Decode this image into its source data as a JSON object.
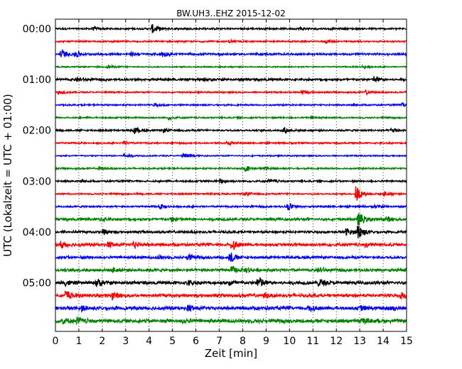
{
  "chart_data": {
    "type": "line",
    "title": "BW.UH3..EHZ 2015-12-02",
    "xlabel": "Zeit  [min]",
    "ylabel": "UTC (Lokalzeit = UTC + 01:00)",
    "xlim": [
      0,
      15
    ],
    "x_ticks": [
      0,
      1,
      2,
      3,
      4,
      5,
      6,
      7,
      8,
      9,
      10,
      11,
      12,
      13,
      14,
      15
    ],
    "x_tick_labels": [
      "0",
      "1",
      "2",
      "3",
      "4",
      "5",
      "6",
      "7",
      "8",
      "9",
      "10",
      "11",
      "12",
      "13",
      "14",
      "15"
    ],
    "y_tick_labels": [
      "00:00",
      "01:00",
      "02:00",
      "03:00",
      "04:00",
      "05:00"
    ],
    "y_tick_rows": [
      0,
      4,
      8,
      12,
      16,
      20
    ],
    "trace_interval_minutes": 15,
    "trace_count": 24,
    "grid": "vertical dotted",
    "trace_colors": [
      "#000000",
      "#ff0000",
      "#0000ff",
      "#008000"
    ],
    "series": [
      {
        "start": "00:00",
        "noise": 0.35,
        "events": [
          [
            4.2,
            1.6
          ],
          [
            1.7,
            0.5
          ],
          [
            10.5,
            0.6
          ]
        ]
      },
      {
        "start": "00:15",
        "noise": 0.3,
        "events": [
          [
            7.5,
            0.5
          ],
          [
            11.6,
            0.6
          ]
        ]
      },
      {
        "start": "00:30",
        "noise": 0.4,
        "events": [
          [
            0.3,
            1.6
          ],
          [
            0.9,
            1.2
          ],
          [
            4.6,
            1.0
          ],
          [
            3.3,
            0.5
          ]
        ]
      },
      {
        "start": "00:45",
        "noise": 0.25,
        "events": [
          [
            2.3,
            0.6
          ],
          [
            13.2,
            0.5
          ]
        ]
      },
      {
        "start": "01:00",
        "noise": 0.45,
        "events": [
          [
            13.7,
            1.0
          ],
          [
            1.0,
            0.7
          ],
          [
            6.4,
            0.5
          ]
        ]
      },
      {
        "start": "01:15",
        "noise": 0.3,
        "events": [
          [
            10.6,
            0.8
          ],
          [
            13.3,
            0.8
          ],
          [
            0.2,
            0.6
          ]
        ]
      },
      {
        "start": "01:30",
        "noise": 0.3,
        "events": [
          [
            14.9,
            0.7
          ],
          [
            4.3,
            0.5
          ]
        ]
      },
      {
        "start": "01:45",
        "noise": 0.3,
        "events": [
          [
            4.9,
            0.6
          ],
          [
            11.0,
            0.5
          ]
        ]
      },
      {
        "start": "02:00",
        "noise": 0.35,
        "events": [
          [
            3.4,
            1.3
          ],
          [
            9.8,
            1.1
          ],
          [
            14.4,
            1.0
          ],
          [
            4.7,
            0.6
          ]
        ]
      },
      {
        "start": "02:15",
        "noise": 0.3,
        "events": [
          [
            7.4,
            0.7
          ],
          [
            3.0,
            0.5
          ]
        ]
      },
      {
        "start": "02:30",
        "noise": 0.25,
        "events": [
          [
            5.5,
            1.1
          ],
          [
            3.0,
            0.8
          ]
        ]
      },
      {
        "start": "02:45",
        "noise": 0.3,
        "events": [
          [
            1.9,
            0.7
          ],
          [
            8.2,
            0.9
          ],
          [
            9.0,
            0.5
          ]
        ]
      },
      {
        "start": "03:00",
        "noise": 0.35,
        "events": [
          [
            7.1,
            0.8
          ],
          [
            9.2,
            0.6
          ]
        ]
      },
      {
        "start": "03:15",
        "noise": 0.3,
        "events": [
          [
            12.9,
            3.2
          ],
          [
            14.1,
            1.0
          ],
          [
            8.2,
            0.7
          ]
        ]
      },
      {
        "start": "03:30",
        "noise": 0.35,
        "events": [
          [
            10.0,
            1.4
          ],
          [
            4.5,
            0.8
          ],
          [
            13.7,
            0.6
          ]
        ]
      },
      {
        "start": "03:45",
        "noise": 0.5,
        "events": [
          [
            13.0,
            2.5
          ],
          [
            5.0,
            0.9
          ],
          [
            14.2,
            0.8
          ],
          [
            2.0,
            0.6
          ]
        ]
      },
      {
        "start": "04:00",
        "noise": 0.45,
        "events": [
          [
            13.0,
            2.8
          ],
          [
            2.1,
            1.0
          ],
          [
            12.5,
            1.2
          ]
        ]
      },
      {
        "start": "04:15",
        "noise": 0.55,
        "events": [
          [
            0.3,
            1.5
          ],
          [
            7.6,
            1.9
          ],
          [
            3.4,
            1.1
          ],
          [
            2.3,
            1.0
          ],
          [
            13.3,
            0.8
          ]
        ]
      },
      {
        "start": "04:30",
        "noise": 0.5,
        "events": [
          [
            7.5,
            2.0
          ],
          [
            5.7,
            1.2
          ],
          [
            4.4,
            0.6
          ]
        ]
      },
      {
        "start": "04:45",
        "noise": 0.55,
        "events": [
          [
            7.6,
            1.1
          ],
          [
            8.2,
            0.8
          ],
          [
            2.5,
            0.9
          ],
          [
            11.3,
            1.0
          ]
        ]
      },
      {
        "start": "05:00",
        "noise": 0.6,
        "events": [
          [
            8.7,
            2.6
          ],
          [
            1.8,
            1.6
          ],
          [
            11.3,
            1.5
          ],
          [
            5.7,
            0.9
          ],
          [
            0.5,
            1.0
          ],
          [
            7.5,
            1.0
          ]
        ]
      },
      {
        "start": "05:15",
        "noise": 0.6,
        "events": [
          [
            0.5,
            1.9
          ],
          [
            2.5,
            1.2
          ],
          [
            14.8,
            1.0
          ],
          [
            9.0,
            0.8
          ]
        ]
      },
      {
        "start": "05:30",
        "noise": 0.65,
        "events": [
          [
            5.7,
            1.1
          ],
          [
            10.9,
            1.2
          ],
          [
            14.3,
            1.1
          ],
          [
            1.2,
            0.8
          ],
          [
            13.1,
            0.8
          ]
        ]
      },
      {
        "start": "05:45",
        "noise": 0.7,
        "events": [
          [
            0.3,
            1.2
          ],
          [
            1.0,
            1.2
          ],
          [
            13.1,
            0.9
          ],
          [
            5.5,
            0.6
          ]
        ]
      }
    ]
  }
}
